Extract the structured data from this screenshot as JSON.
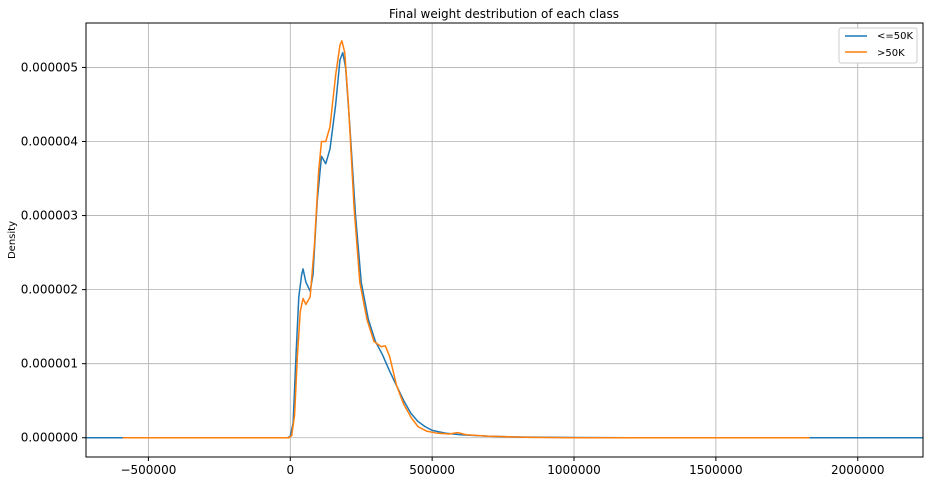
{
  "chart_data": {
    "type": "line",
    "title": "Final weight destribution of each class",
    "xlabel": "",
    "ylabel": "Density",
    "xlim": [
      -720000,
      2230000
    ],
    "ylim": [
      -2.6e-07,
      5.6e-06
    ],
    "x_ticks": [
      -500000,
      0,
      500000,
      1000000,
      1500000,
      2000000
    ],
    "x_tick_labels": [
      "−500000",
      "0",
      "500000",
      "1000000",
      "1500000",
      "2000000"
    ],
    "y_ticks": [
      0,
      1e-06,
      2e-06,
      3e-06,
      4e-06,
      5e-06
    ],
    "y_tick_labels": [
      "0.000000",
      "0.000001",
      "0.000002",
      "0.000003",
      "0.000004",
      "0.000005"
    ],
    "grid": true,
    "legend_position": "top-right",
    "series": [
      {
        "name": "<=50K",
        "color": "#1f77b4",
        "points": [
          [
            -720000,
            0
          ],
          [
            -10000,
            0
          ],
          [
            0,
            2e-08
          ],
          [
            10000,
            2e-07
          ],
          [
            20000,
            1.1e-06
          ],
          [
            30000,
            1.9e-06
          ],
          [
            40000,
            2.2e-06
          ],
          [
            45000,
            2.28e-06
          ],
          [
            55000,
            2.1e-06
          ],
          [
            70000,
            1.98e-06
          ],
          [
            80000,
            2.2e-06
          ],
          [
            95000,
            3.2e-06
          ],
          [
            110000,
            3.8e-06
          ],
          [
            125000,
            3.7e-06
          ],
          [
            140000,
            3.9e-06
          ],
          [
            160000,
            4.5e-06
          ],
          [
            175000,
            5.1e-06
          ],
          [
            185000,
            5.2e-06
          ],
          [
            195000,
            5e-06
          ],
          [
            210000,
            4.2e-06
          ],
          [
            230000,
            3e-06
          ],
          [
            250000,
            2.1e-06
          ],
          [
            275000,
            1.6e-06
          ],
          [
            300000,
            1.3e-06
          ],
          [
            325000,
            1.12e-06
          ],
          [
            350000,
            9e-07
          ],
          [
            375000,
            7e-07
          ],
          [
            400000,
            5e-07
          ],
          [
            425000,
            3.3e-07
          ],
          [
            450000,
            2.2e-07
          ],
          [
            475000,
            1.5e-07
          ],
          [
            500000,
            1e-07
          ],
          [
            550000,
            6e-08
          ],
          [
            600000,
            4e-08
          ],
          [
            700000,
            2e-08
          ],
          [
            800000,
            1e-08
          ],
          [
            1000000,
            3e-09
          ],
          [
            1200000,
            0
          ],
          [
            2230000,
            0
          ]
        ]
      },
      {
        "name": ">50K",
        "color": "#ff7f0e",
        "points": [
          [
            -590000,
            0
          ],
          [
            -5000,
            0
          ],
          [
            5000,
            3e-08
          ],
          [
            15000,
            3e-07
          ],
          [
            25000,
            1.1e-06
          ],
          [
            35000,
            1.7e-06
          ],
          [
            45000,
            1.88e-06
          ],
          [
            55000,
            1.8e-06
          ],
          [
            70000,
            1.9e-06
          ],
          [
            85000,
            2.6e-06
          ],
          [
            100000,
            3.6e-06
          ],
          [
            110000,
            4e-06
          ],
          [
            125000,
            4e-06
          ],
          [
            140000,
            4.2e-06
          ],
          [
            160000,
            4.9e-06
          ],
          [
            175000,
            5.3e-06
          ],
          [
            182000,
            5.36e-06
          ],
          [
            192000,
            5.2e-06
          ],
          [
            205000,
            4.5e-06
          ],
          [
            225000,
            3.1e-06
          ],
          [
            245000,
            2.1e-06
          ],
          [
            270000,
            1.6e-06
          ],
          [
            295000,
            1.3e-06
          ],
          [
            320000,
            1.23e-06
          ],
          [
            335000,
            1.24e-06
          ],
          [
            350000,
            1.1e-06
          ],
          [
            375000,
            7e-07
          ],
          [
            400000,
            4.5e-07
          ],
          [
            425000,
            2.8e-07
          ],
          [
            450000,
            1.5e-07
          ],
          [
            480000,
            9e-08
          ],
          [
            520000,
            6e-08
          ],
          [
            560000,
            5e-08
          ],
          [
            590000,
            7e-08
          ],
          [
            620000,
            4e-08
          ],
          [
            700000,
            2e-08
          ],
          [
            850000,
            5e-09
          ],
          [
            1000000,
            0
          ],
          [
            1830000,
            0
          ]
        ]
      }
    ]
  }
}
